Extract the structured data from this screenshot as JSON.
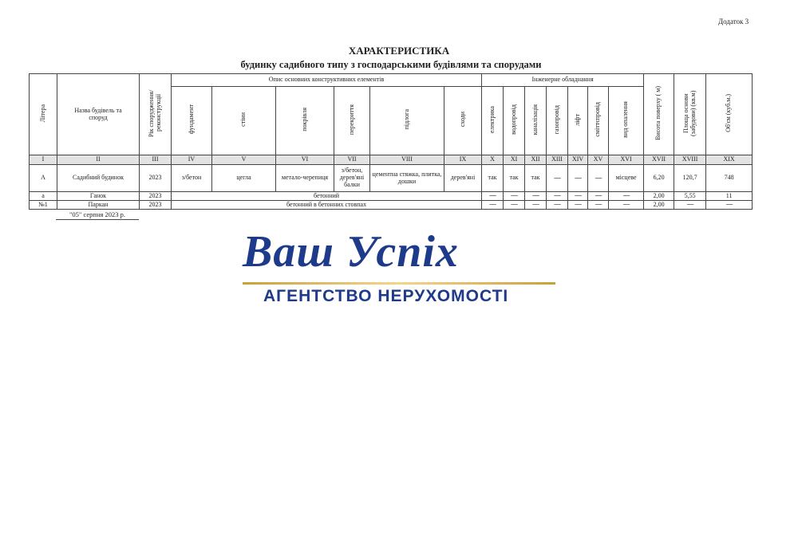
{
  "appendix": "Додаток 3",
  "title": "ХАРАКТЕРИСТИКА",
  "subtitle": "будинку садибного типу з господарськими будівлями та спорудами",
  "headers": {
    "litera": "Літера",
    "name": "Назва будівель та споруд",
    "year": "Рік спорудження/ реконструкції",
    "constr": "Опис основних конструктивних елементів",
    "eng": "Інженерне обладнання",
    "fundament": "фундамент",
    "walls": "стіни",
    "roof": "покрівля",
    "ceiling": "перекриття",
    "floor": "підлога",
    "stairs": "сходи",
    "electric": "електрика",
    "water": "водопровід",
    "sewer": "каналізація",
    "gas": "газопровід",
    "lift": "ліфт",
    "garbage": "сміттєпровід",
    "heating": "вид опалення",
    "height": "Висота поверху ( м)",
    "area": "Площа основи (забудови) (кв.м)",
    "volume": "Об'єм (куб.м.)"
  },
  "numerals": [
    "I",
    "II",
    "III",
    "IV",
    "V",
    "VI",
    "VII",
    "VIII",
    "IX",
    "X",
    "XI",
    "XII",
    "XIII",
    "XIV",
    "XV",
    "XVI",
    "XVII",
    "XVIII",
    "XIX"
  ],
  "rows": [
    {
      "cells": [
        "А",
        "Садибний будинок",
        "2023",
        "з/бетон",
        "цегла",
        "метало-черепиця",
        "з/бетон, дерев'яні балки",
        "цементна стяжка, плитка, дошки",
        "дерев'яні",
        "так",
        "так",
        "так",
        "------",
        "------",
        "------",
        "місцеве",
        "6,20",
        "120,7",
        "748"
      ]
    },
    {
      "cells": [
        "а",
        "Ганок",
        "2023",
        "бетонний",
        "------",
        "------",
        "------",
        "------",
        "------",
        "------",
        "------",
        "2,00",
        "5,55",
        "11"
      ]
    },
    {
      "cells": [
        "№1",
        "Паркан",
        "2023",
        "бетонний в бетонних стовпах",
        "------",
        "------",
        "------",
        "------",
        "------",
        "------",
        "------",
        "2,00",
        "------",
        "------"
      ]
    }
  ],
  "date": "\"05\" серпня 2023 р.",
  "logo": {
    "name": "Ваш Успіх",
    "tagline": "АГЕНТСТВО НЕРУХОМОСТІ",
    "colors": {
      "blue": "#1e3a8a",
      "gold": "#c9a13a"
    }
  }
}
